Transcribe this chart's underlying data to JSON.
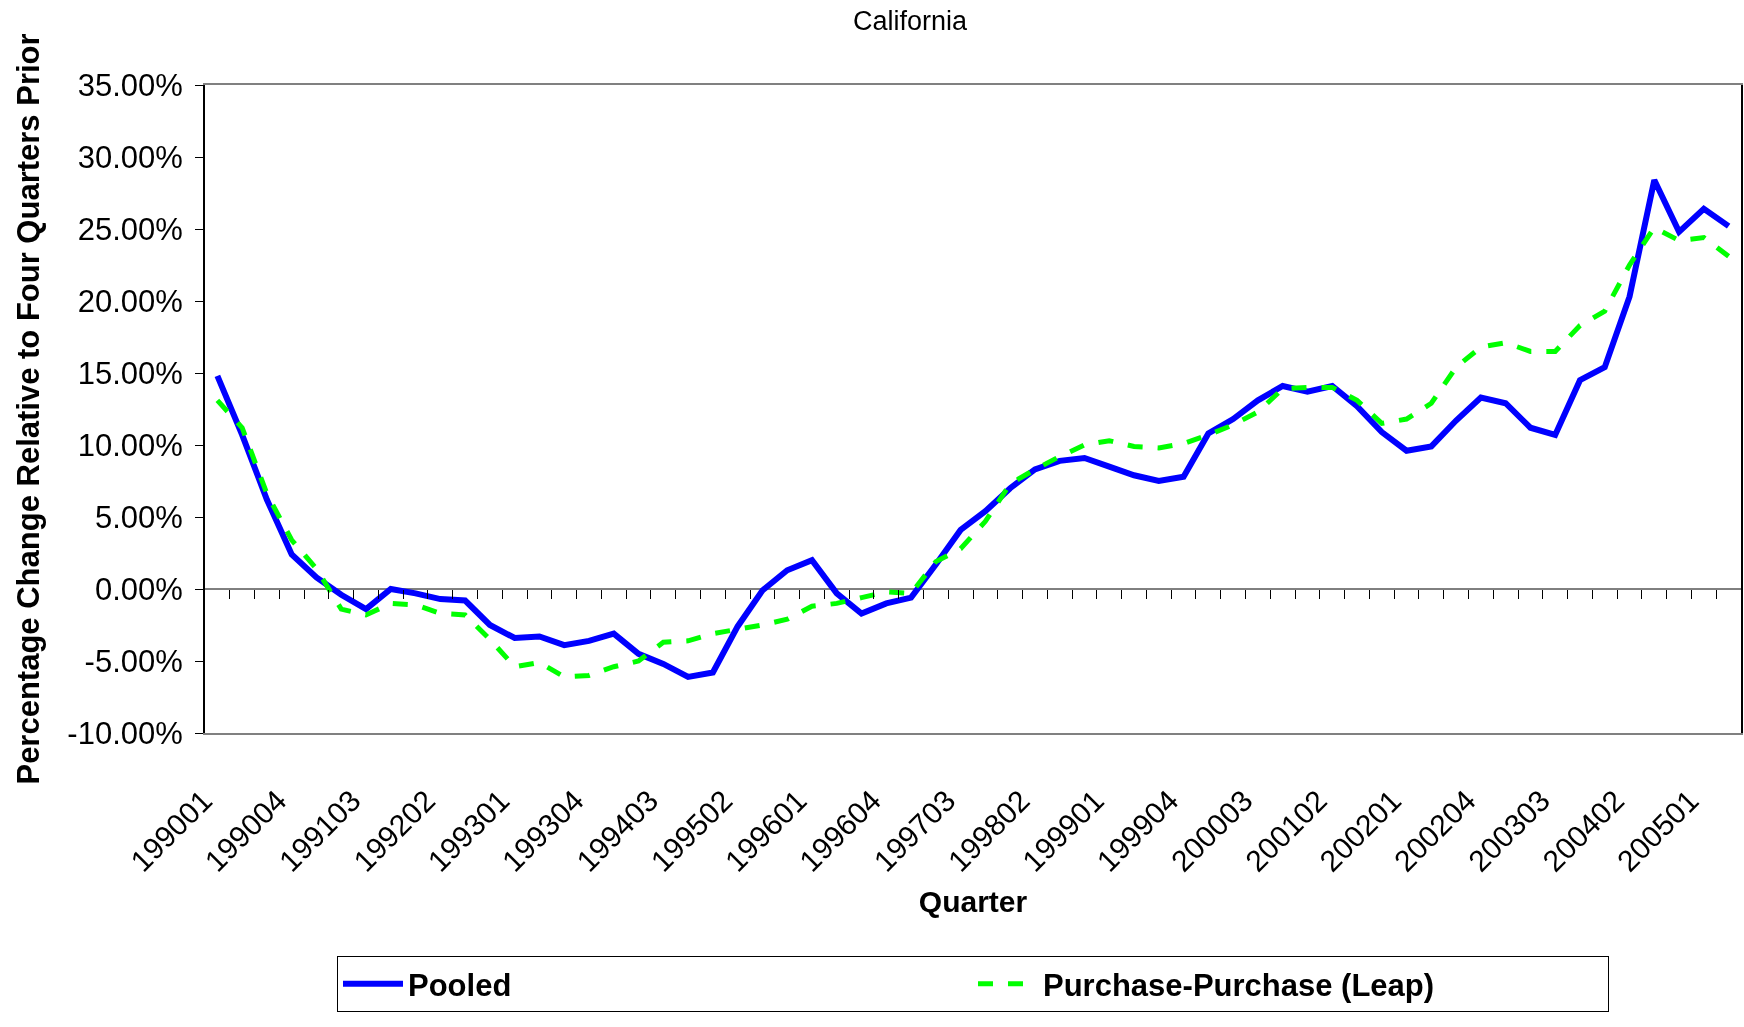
{
  "chart_data": {
    "type": "line",
    "title": "California",
    "xlabel": "Quarter",
    "ylabel": "Percentage Change Relative to Four Quarters Prior",
    "categories": [
      "199001",
      null,
      null,
      "199004",
      null,
      null,
      "199103",
      null,
      null,
      "199202",
      null,
      null,
      "199301",
      null,
      null,
      "199304",
      null,
      null,
      "199403",
      null,
      null,
      "199502",
      null,
      null,
      "199601",
      null,
      null,
      "199604",
      null,
      null,
      "199703",
      null,
      null,
      "199802",
      null,
      null,
      "199901",
      null,
      null,
      "199904",
      null,
      null,
      "200003",
      null,
      null,
      "200102",
      null,
      null,
      "200201",
      null,
      null,
      "200204",
      null,
      null,
      "200303",
      null,
      null,
      "200402",
      null,
      null,
      "200501",
      null
    ],
    "series": [
      {
        "name": "Pooled",
        "color": "#0000ff",
        "line_style": "solid",
        "values": [
          14.8,
          10.7,
          6.2,
          2.4,
          0.8,
          -0.4,
          -1.4,
          0.0,
          -0.3,
          -0.7,
          -0.8,
          -2.5,
          -3.4,
          -3.3,
          -3.9,
          -3.6,
          -3.1,
          -4.5,
          -5.2,
          -6.1,
          -5.8,
          -2.6,
          -0.1,
          1.3,
          2.0,
          -0.3,
          -1.7,
          -1.0,
          -0.6,
          1.7,
          4.1,
          5.4,
          7.0,
          8.3,
          8.9,
          9.1,
          8.5,
          7.9,
          7.5,
          7.8,
          10.8,
          11.8,
          13.1,
          14.1,
          13.7,
          14.1,
          12.7,
          10.9,
          9.6,
          9.9,
          11.7,
          13.3,
          12.9,
          11.2,
          10.7,
          14.5,
          15.4,
          20.3,
          28.4,
          24.8,
          26.4,
          25.2
        ]
      },
      {
        "name": "Purchase-Purchase (Leap)",
        "color": "#00ff00",
        "line_style": "dashed",
        "values": [
          13.1,
          11.2,
          6.6,
          3.4,
          1.4,
          -1.4,
          -1.8,
          -1.0,
          -1.1,
          -1.7,
          -1.8,
          -3.5,
          -5.4,
          -5.1,
          -6.1,
          -6.0,
          -5.4,
          -5.0,
          -3.7,
          -3.6,
          -3.1,
          -2.8,
          -2.5,
          -2.1,
          -1.2,
          -1.0,
          -0.6,
          -0.2,
          -0.3,
          1.9,
          2.8,
          4.7,
          7.3,
          8.3,
          9.2,
          10.0,
          10.3,
          9.9,
          9.8,
          10.1,
          10.7,
          11.4,
          12.3,
          13.9,
          14.0,
          14.0,
          13.1,
          11.5,
          11.8,
          12.9,
          15.4,
          16.8,
          17.1,
          16.5,
          16.5,
          18.3,
          19.3,
          22.5,
          25.1,
          24.2,
          24.4,
          23.1
        ]
      }
    ],
    "ylim": [
      -10,
      35
    ],
    "yticks": [
      {
        "value": -10,
        "label": "-10.00%"
      },
      {
        "value": -5,
        "label": "-5.00%"
      },
      {
        "value": 0,
        "label": "0.00%"
      },
      {
        "value": 5,
        "label": "5.00%"
      },
      {
        "value": 10,
        "label": "10.00%"
      },
      {
        "value": 15,
        "label": "15.00%"
      },
      {
        "value": 20,
        "label": "20.00%"
      },
      {
        "value": 25,
        "label": "25.00%"
      },
      {
        "value": 30,
        "label": "30.00%"
      },
      {
        "value": 35,
        "label": "35.00%"
      }
    ],
    "ref_lines": [
      {
        "axis": "y",
        "value": 0,
        "color": "#000000",
        "line_style": "solid"
      }
    ],
    "legend": "bottom",
    "grid": false,
    "marker": "none"
  }
}
